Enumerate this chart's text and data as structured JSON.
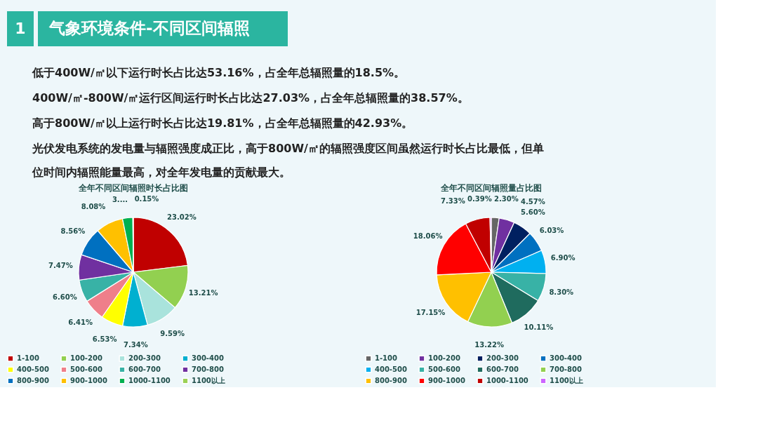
{
  "chart_data": [
    {
      "type": "other",
      "title": "气象环境条件-不同区间辐照",
      "annotations": [
        "1",
        "低于400W/㎡以下运行时长占比达53.16%，占全年总辐照量的18.5%。",
        "400W/㎡-800W/㎡运行区间运行时长占比达27.03%，占全年总辐照量的38.57%。",
        "高于800W/㎡以上运行时长占比达19.81%，占全年总辐照量的42.93%。",
        "光伏发电系统的发电量与辐照强度成正比，高于800W/㎡的辐照强度区间虽然运行时长占比最低，但单位时间内辐照能量最高，对全年发电量的贡献最大。"
      ]
    },
    {
      "type": "pie",
      "title": "全年不同区间辐照时长占比图",
      "legend": "bottom",
      "categories": [
        "1-100",
        "100-200",
        "200-300",
        "300-400",
        "400-500",
        "500-600",
        "600-700",
        "700-800",
        "800-900",
        "900-1000",
        "1000-1100",
        "1100以上"
      ],
      "values": [
        23.02,
        13.21,
        9.59,
        7.34,
        6.53,
        6.41,
        6.6,
        7.47,
        8.56,
        8.08,
        3.04,
        0.15
      ],
      "value_labels": [
        "23.02%",
        "13.21%",
        "9.59%",
        "7.34%",
        "6.53%",
        "6.41%",
        "6.60%",
        "7.47%",
        "8.56%",
        "8.08%",
        "3....",
        "0.15%"
      ],
      "colors": [
        "#c00000",
        "#92d050",
        "#a9e3dc",
        "#00b0d0",
        "#ffff00",
        "#ef7f8a",
        "#38b2a6",
        "#7030a0",
        "#0070c0",
        "#ffc000",
        "#00b050",
        "#9bd156"
      ]
    },
    {
      "type": "pie",
      "title": "全年不同区间辐照量占比图",
      "legend": "bottom",
      "categories": [
        "1-100",
        "100-200",
        "200-300",
        "300-400",
        "400-500",
        "500-600",
        "600-700",
        "700-800",
        "800-900",
        "900-1000",
        "1000-1100",
        "1100以上"
      ],
      "values": [
        2.3,
        4.57,
        5.6,
        6.03,
        6.9,
        8.3,
        10.11,
        13.22,
        17.15,
        18.06,
        7.33,
        0.39
      ],
      "value_labels": [
        "2.30%",
        "4.57%",
        "5.60%",
        "6.03%",
        "6.90%",
        "8.30%",
        "10.11%",
        "13.22%",
        "17.15%",
        "18.06%",
        "7.33%",
        "0.39%"
      ],
      "colors": [
        "#666666",
        "#7030a0",
        "#002060",
        "#0070c0",
        "#00b0f0",
        "#38b2a6",
        "#1f6b5e",
        "#92d050",
        "#ffc000",
        "#ff0000",
        "#c00000",
        "#cc66ff"
      ]
    }
  ]
}
